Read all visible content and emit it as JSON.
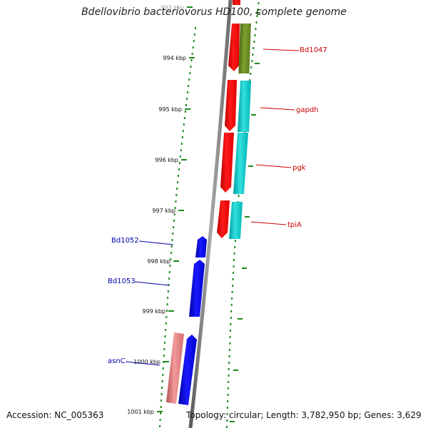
{
  "title": "Bdellovibrio bacteriovorus HD100, complete genome",
  "footer": {
    "accession": "Accession: NC_005363",
    "summary": "Topology: circular; Length: 3,782,950 bp; Genes: 3,629"
  },
  "scale": {
    "ticks": [
      "993 kbp",
      "994 kbp",
      "995 kbp",
      "996 kbp",
      "997 kbp",
      "998 kbp",
      "999 kbp",
      "1000 kbp",
      "1001 kbp"
    ]
  },
  "colors": {
    "forward": "#ff0000",
    "reverse": "#0000ff",
    "track_olive": "#6b8e23",
    "track_cyan": "#00c8c8",
    "track_pink": "#e58080",
    "dots": "#1a8a1a",
    "backbone": "#808080",
    "label_forward": "#cc0000",
    "label_reverse": "#0000aa"
  },
  "genes": [
    {
      "label": "Bd1047",
      "strand": "forward"
    },
    {
      "label": "gapdh",
      "strand": "forward"
    },
    {
      "label": "pgk",
      "strand": "forward"
    },
    {
      "label": "tpiA",
      "strand": "forward"
    },
    {
      "label": "Bd1052",
      "strand": "reverse"
    },
    {
      "label": "Bd1053",
      "strand": "reverse"
    },
    {
      "label": "asnC",
      "strand": "reverse"
    }
  ]
}
